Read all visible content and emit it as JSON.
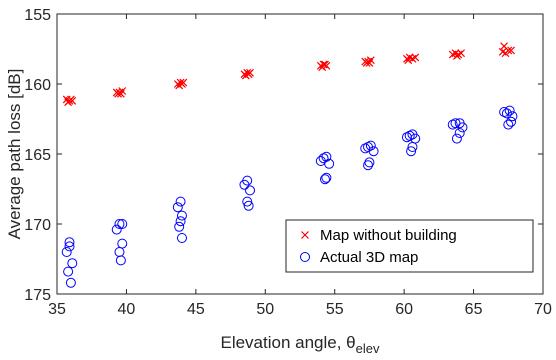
{
  "chart_data": {
    "type": "scatter",
    "xlabel": "Elevation angle, θ",
    "xlabel_subscript": "elev",
    "ylabel": "Average path loss [dB]",
    "xlim": [
      35,
      70
    ],
    "ylim": [
      155,
      175
    ],
    "y_reversed": true,
    "xticks": [
      "35",
      "40",
      "45",
      "50",
      "55",
      "60",
      "65",
      "70"
    ],
    "yticks": [
      "155",
      "160",
      "165",
      "170",
      "175"
    ],
    "grid": false,
    "legend_position": "bottom-right",
    "series": [
      {
        "name": "Map without building",
        "marker": "x",
        "color": "#ff0000",
        "points": [
          [
            35.7,
            161.1
          ],
          [
            35.9,
            161.2
          ],
          [
            36.1,
            161.2
          ],
          [
            35.8,
            161.3
          ],
          [
            36.0,
            161.1
          ],
          [
            39.3,
            160.6
          ],
          [
            39.5,
            160.6
          ],
          [
            39.7,
            160.5
          ],
          [
            39.6,
            160.7
          ],
          [
            39.4,
            160.7
          ],
          [
            43.7,
            160.0
          ],
          [
            43.9,
            159.9
          ],
          [
            44.1,
            159.9
          ],
          [
            43.8,
            160.1
          ],
          [
            44.0,
            160.0
          ],
          [
            48.5,
            159.3
          ],
          [
            48.7,
            159.2
          ],
          [
            48.9,
            159.2
          ],
          [
            48.6,
            159.4
          ],
          [
            48.8,
            159.3
          ],
          [
            54.0,
            158.7
          ],
          [
            54.2,
            158.6
          ],
          [
            54.4,
            158.7
          ],
          [
            54.1,
            158.8
          ],
          [
            54.3,
            158.6
          ],
          [
            57.2,
            158.4
          ],
          [
            57.4,
            158.4
          ],
          [
            57.6,
            158.3
          ],
          [
            57.3,
            158.5
          ],
          [
            57.5,
            158.5
          ],
          [
            60.2,
            158.2
          ],
          [
            60.4,
            158.1
          ],
          [
            60.6,
            158.2
          ],
          [
            60.3,
            158.3
          ],
          [
            60.8,
            158.1
          ],
          [
            63.5,
            157.9
          ],
          [
            63.7,
            157.8
          ],
          [
            63.9,
            157.9
          ],
          [
            64.1,
            157.8
          ],
          [
            63.8,
            158.0
          ],
          [
            67.2,
            157.3
          ],
          [
            67.1,
            157.7
          ],
          [
            67.5,
            157.6
          ],
          [
            67.7,
            157.6
          ],
          [
            67.3,
            157.8
          ]
        ]
      },
      {
        "name": "Actual 3D map",
        "marker": "o",
        "color": "#0000ff",
        "points": [
          [
            35.7,
            172.0
          ],
          [
            35.9,
            171.3
          ],
          [
            36.1,
            172.8
          ],
          [
            35.8,
            173.4
          ],
          [
            36.0,
            174.2
          ],
          [
            35.9,
            171.6
          ],
          [
            39.3,
            170.4
          ],
          [
            39.5,
            170.0
          ],
          [
            39.7,
            171.4
          ],
          [
            39.5,
            172.0
          ],
          [
            39.6,
            172.6
          ],
          [
            39.7,
            170.0
          ],
          [
            43.7,
            168.8
          ],
          [
            43.9,
            168.4
          ],
          [
            44.0,
            169.4
          ],
          [
            43.8,
            170.2
          ],
          [
            44.0,
            171.0
          ],
          [
            43.9,
            169.8
          ],
          [
            48.5,
            167.2
          ],
          [
            48.7,
            166.9
          ],
          [
            48.9,
            167.6
          ],
          [
            48.7,
            168.4
          ],
          [
            48.8,
            168.7
          ],
          [
            54.0,
            165.5
          ],
          [
            54.2,
            165.3
          ],
          [
            54.4,
            165.2
          ],
          [
            54.6,
            165.7
          ],
          [
            54.4,
            166.7
          ],
          [
            54.3,
            166.8
          ],
          [
            57.2,
            164.6
          ],
          [
            57.4,
            164.5
          ],
          [
            57.6,
            164.4
          ],
          [
            57.8,
            164.8
          ],
          [
            57.5,
            165.6
          ],
          [
            57.4,
            165.8
          ],
          [
            60.2,
            163.8
          ],
          [
            60.4,
            163.7
          ],
          [
            60.6,
            163.6
          ],
          [
            60.8,
            163.9
          ],
          [
            60.6,
            164.5
          ],
          [
            60.5,
            164.8
          ],
          [
            63.5,
            162.9
          ],
          [
            63.7,
            162.8
          ],
          [
            64.0,
            162.8
          ],
          [
            64.2,
            163.1
          ],
          [
            64.0,
            163.5
          ],
          [
            63.8,
            163.9
          ],
          [
            67.2,
            162.0
          ],
          [
            67.4,
            162.1
          ],
          [
            67.6,
            161.9
          ],
          [
            67.8,
            162.3
          ],
          [
            67.7,
            162.7
          ],
          [
            67.5,
            162.9
          ]
        ]
      }
    ]
  }
}
